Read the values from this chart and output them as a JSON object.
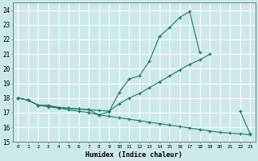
{
  "line1_x": [
    0,
    1,
    2,
    3,
    4,
    5,
    6,
    7,
    8,
    9,
    10,
    11,
    12,
    13,
    14,
    15,
    16,
    17,
    18,
    19,
    20,
    21,
    22,
    23
  ],
  "line1_y": [
    18.0,
    17.85,
    17.5,
    17.5,
    17.35,
    17.3,
    17.25,
    17.2,
    16.85,
    17.05,
    18.35,
    19.3,
    19.5,
    20.5,
    22.2,
    22.8,
    23.5,
    23.9,
    21.1,
    null,
    null,
    null,
    17.1,
    15.55
  ],
  "line2_x": [
    0,
    1,
    2,
    3,
    4,
    5,
    6,
    7,
    8,
    9,
    10,
    11,
    12,
    13,
    14,
    15,
    16,
    17,
    18,
    19,
    20,
    21,
    22,
    23
  ],
  "line2_y": [
    18.0,
    17.85,
    17.5,
    17.45,
    17.35,
    17.3,
    17.25,
    17.2,
    17.15,
    17.1,
    17.6,
    18.0,
    18.3,
    18.7,
    19.1,
    19.5,
    19.9,
    20.3,
    20.6,
    21.0,
    null,
    null,
    null,
    null
  ],
  "line3_x": [
    0,
    1,
    2,
    3,
    4,
    5,
    6,
    7,
    8,
    9,
    10,
    11,
    12,
    13,
    14,
    15,
    16,
    17,
    18,
    19,
    20,
    21,
    22,
    23
  ],
  "line3_y": [
    18.0,
    17.85,
    17.5,
    17.4,
    17.3,
    17.2,
    17.1,
    17.0,
    16.85,
    16.75,
    16.65,
    16.55,
    16.45,
    16.35,
    16.25,
    16.15,
    16.05,
    15.95,
    15.85,
    15.75,
    15.65,
    15.6,
    15.55,
    15.5
  ],
  "color": "#1a7a6e",
  "bg_color": "#cde8e8",
  "grid_color": "#ffffff",
  "xlabel": "Humidex (Indice chaleur)",
  "xlim": [
    -0.5,
    23.5
  ],
  "ylim": [
    15,
    24.5
  ],
  "yticks": [
    15,
    16,
    17,
    18,
    19,
    20,
    21,
    22,
    23,
    24
  ],
  "xticks": [
    0,
    1,
    2,
    3,
    4,
    5,
    6,
    7,
    8,
    9,
    10,
    11,
    12,
    13,
    14,
    15,
    16,
    17,
    18,
    19,
    20,
    21,
    22,
    23
  ]
}
